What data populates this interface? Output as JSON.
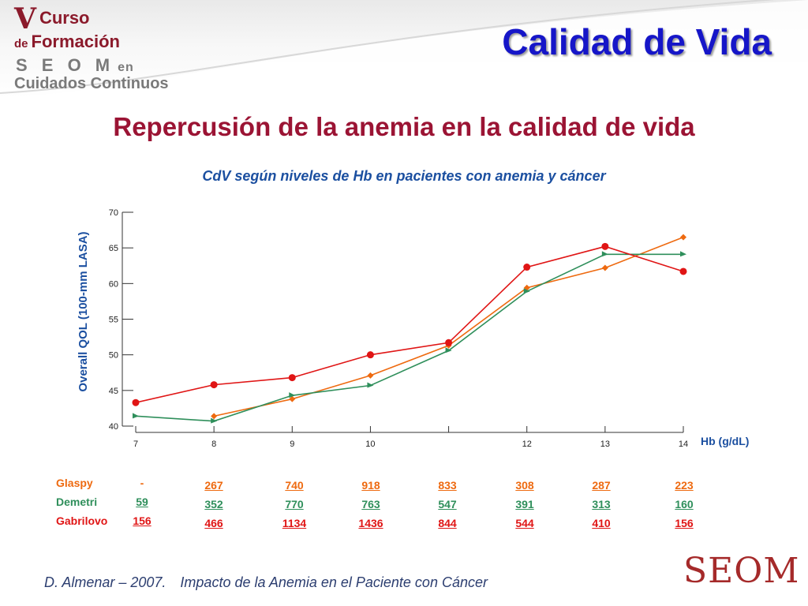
{
  "header": {
    "logo_lines": [
      "V",
      "Curso",
      "de",
      "Formación",
      "S E O M",
      "en",
      "Cuidados Continuos"
    ],
    "slide_title": "Calidad de Vida"
  },
  "subtitle": "Repercusión de la anemia en la calidad de vida",
  "chart_data": {
    "type": "line",
    "title": "CdV según niveles de Hb en pacientes con anemia y cáncer",
    "xlabel": "Hb (g/dL)",
    "ylabel": "Overall QOL (100-mm LASA)",
    "xlim": [
      7,
      14
    ],
    "ylim": [
      40,
      70
    ],
    "x_ticks": [
      7,
      8,
      9,
      10,
      11,
      12,
      13,
      14
    ],
    "x_tick_labels": [
      "7",
      "8",
      "9",
      "10",
      "",
      "12",
      "13",
      "14"
    ],
    "y_ticks": [
      40,
      45,
      50,
      55,
      60,
      65,
      70
    ],
    "y_tick_labels": [
      "40",
      "45",
      "50",
      "55",
      "60",
      "65",
      "70"
    ],
    "grid": false,
    "series": [
      {
        "name": "Glaspy",
        "color": "#ee6a10",
        "marker": "diamond",
        "x": [
          8,
          9,
          10,
          11,
          12,
          13,
          14
        ],
        "y": [
          41.4,
          43.8,
          47.1,
          51.3,
          59.4,
          62.2,
          66.5
        ]
      },
      {
        "name": "Demetri",
        "color": "#2f8f5b",
        "marker": "triangle",
        "x": [
          7,
          8,
          9,
          10,
          11,
          12,
          13,
          14
        ],
        "y": [
          41.4,
          40.7,
          44.3,
          45.7,
          50.6,
          58.9,
          64.1,
          64.1
        ]
      },
      {
        "name": "Gabrilovo",
        "color": "#e01515",
        "marker": "circle",
        "x": [
          7,
          8,
          9,
          10,
          11,
          12,
          13,
          14
        ],
        "y": [
          43.3,
          45.8,
          46.8,
          50.0,
          51.7,
          62.3,
          65.2,
          61.7
        ]
      }
    ]
  },
  "table": {
    "rows": [
      {
        "label": "Glaspy",
        "color": "#ee6a10",
        "values": [
          "-",
          "267",
          "740",
          "918",
          "833",
          "308",
          "287",
          "223"
        ]
      },
      {
        "label": "Demetri",
        "color": "#2f8f5b",
        "values": [
          "59",
          "352",
          "770",
          "763",
          "547",
          "391",
          "313",
          "160"
        ]
      },
      {
        "label": "Gabrilovo",
        "color": "#e01515",
        "values": [
          "156",
          "466",
          "1134",
          "1436",
          "844",
          "544",
          "410",
          "156"
        ]
      }
    ]
  },
  "footer": {
    "author": "D. Almenar – 2007.",
    "text": "Impacto de la Anemia en el Paciente con Cáncer",
    "logo": "SEOM"
  }
}
